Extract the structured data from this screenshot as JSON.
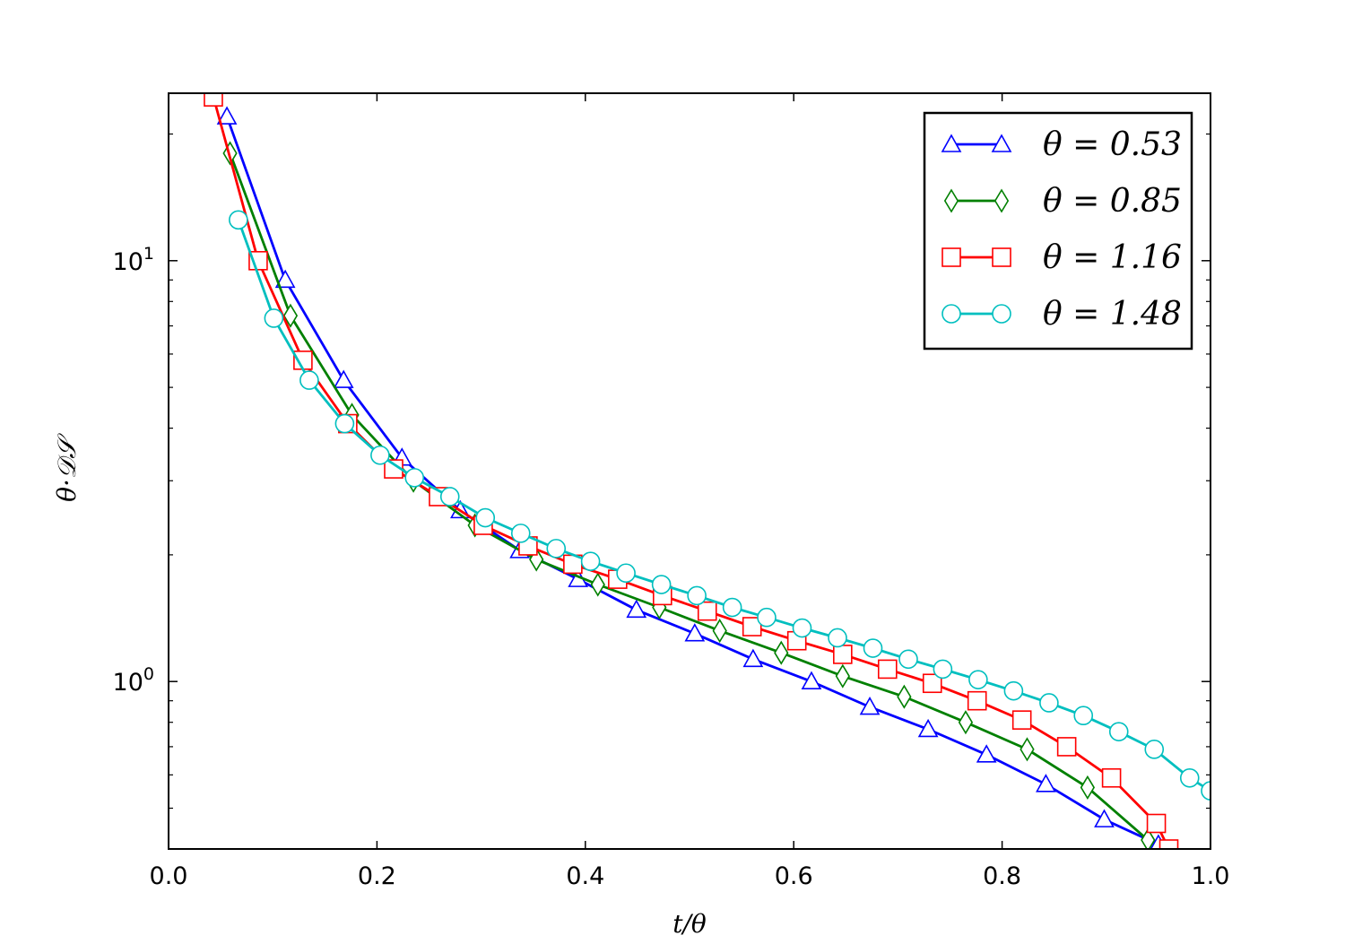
{
  "chart_data": {
    "type": "line",
    "title": "",
    "xlabel": "t/θ",
    "ylabel": "θ·𝒟𝒮",
    "xlim": [
      0.0,
      1.0
    ],
    "ylim": [
      0.4,
      25.0
    ],
    "yscale": "log",
    "x_ticks": [
      "0.0",
      "0.2",
      "0.4",
      "0.6",
      "0.8",
      "1.0"
    ],
    "x_tick_values": [
      0.0,
      0.2,
      0.4,
      0.6,
      0.8,
      1.0
    ],
    "y_ticks": [
      {
        "base": "10",
        "exp": "0",
        "value": 1
      },
      {
        "base": "10",
        "exp": "1",
        "value": 10
      }
    ],
    "grid": false,
    "legend_position": "top-right",
    "series": [
      {
        "name": "θ = 0.53",
        "color": "#0000ff",
        "marker": "triangle",
        "x": [
          0.056,
          0.112,
          0.168,
          0.224,
          0.28,
          0.337,
          0.393,
          0.449,
          0.505,
          0.561,
          0.617,
          0.673,
          0.729,
          0.785,
          0.842,
          0.898,
          0.95
        ],
        "y": [
          22.0,
          9.0,
          5.2,
          3.4,
          2.55,
          2.05,
          1.75,
          1.48,
          1.3,
          1.13,
          1.0,
          0.87,
          0.77,
          0.67,
          0.57,
          0.47,
          0.41
        ]
      },
      {
        "name": "θ = 0.85",
        "color": "#008000",
        "marker": "diamond",
        "x": [
          0.059,
          0.117,
          0.176,
          0.235,
          0.294,
          0.353,
          0.412,
          0.471,
          0.529,
          0.588,
          0.647,
          0.706,
          0.765,
          0.824,
          0.882,
          0.94
        ],
        "y": [
          18.0,
          7.4,
          4.3,
          3.0,
          2.35,
          1.95,
          1.7,
          1.5,
          1.32,
          1.17,
          1.03,
          0.92,
          0.8,
          0.69,
          0.56,
          0.42
        ]
      },
      {
        "name": "θ = 1.16",
        "color": "#ff0000",
        "marker": "square",
        "x": [
          0.043,
          0.086,
          0.129,
          0.172,
          0.216,
          0.259,
          0.302,
          0.345,
          0.388,
          0.431,
          0.474,
          0.517,
          0.56,
          0.603,
          0.647,
          0.69,
          0.733,
          0.776,
          0.819,
          0.862,
          0.905,
          0.948,
          0.96
        ],
        "y": [
          24.5,
          10.0,
          5.8,
          4.1,
          3.2,
          2.75,
          2.35,
          2.1,
          1.9,
          1.75,
          1.6,
          1.47,
          1.35,
          1.25,
          1.16,
          1.07,
          0.99,
          0.9,
          0.81,
          0.7,
          0.59,
          0.46,
          0.4
        ]
      },
      {
        "name": "θ = 1.48",
        "color": "#00bfbf",
        "marker": "circle",
        "x": [
          0.067,
          0.101,
          0.135,
          0.169,
          0.203,
          0.236,
          0.27,
          0.304,
          0.338,
          0.372,
          0.405,
          0.439,
          0.473,
          0.507,
          0.541,
          0.574,
          0.608,
          0.642,
          0.676,
          0.71,
          0.743,
          0.777,
          0.811,
          0.845,
          0.878,
          0.912,
          0.946,
          0.98,
          1.0
        ],
        "y": [
          12.5,
          7.3,
          5.2,
          4.1,
          3.45,
          3.05,
          2.75,
          2.45,
          2.25,
          2.07,
          1.93,
          1.81,
          1.7,
          1.6,
          1.5,
          1.42,
          1.34,
          1.27,
          1.2,
          1.13,
          1.07,
          1.01,
          0.95,
          0.89,
          0.83,
          0.76,
          0.69,
          0.59,
          0.55
        ]
      }
    ]
  }
}
